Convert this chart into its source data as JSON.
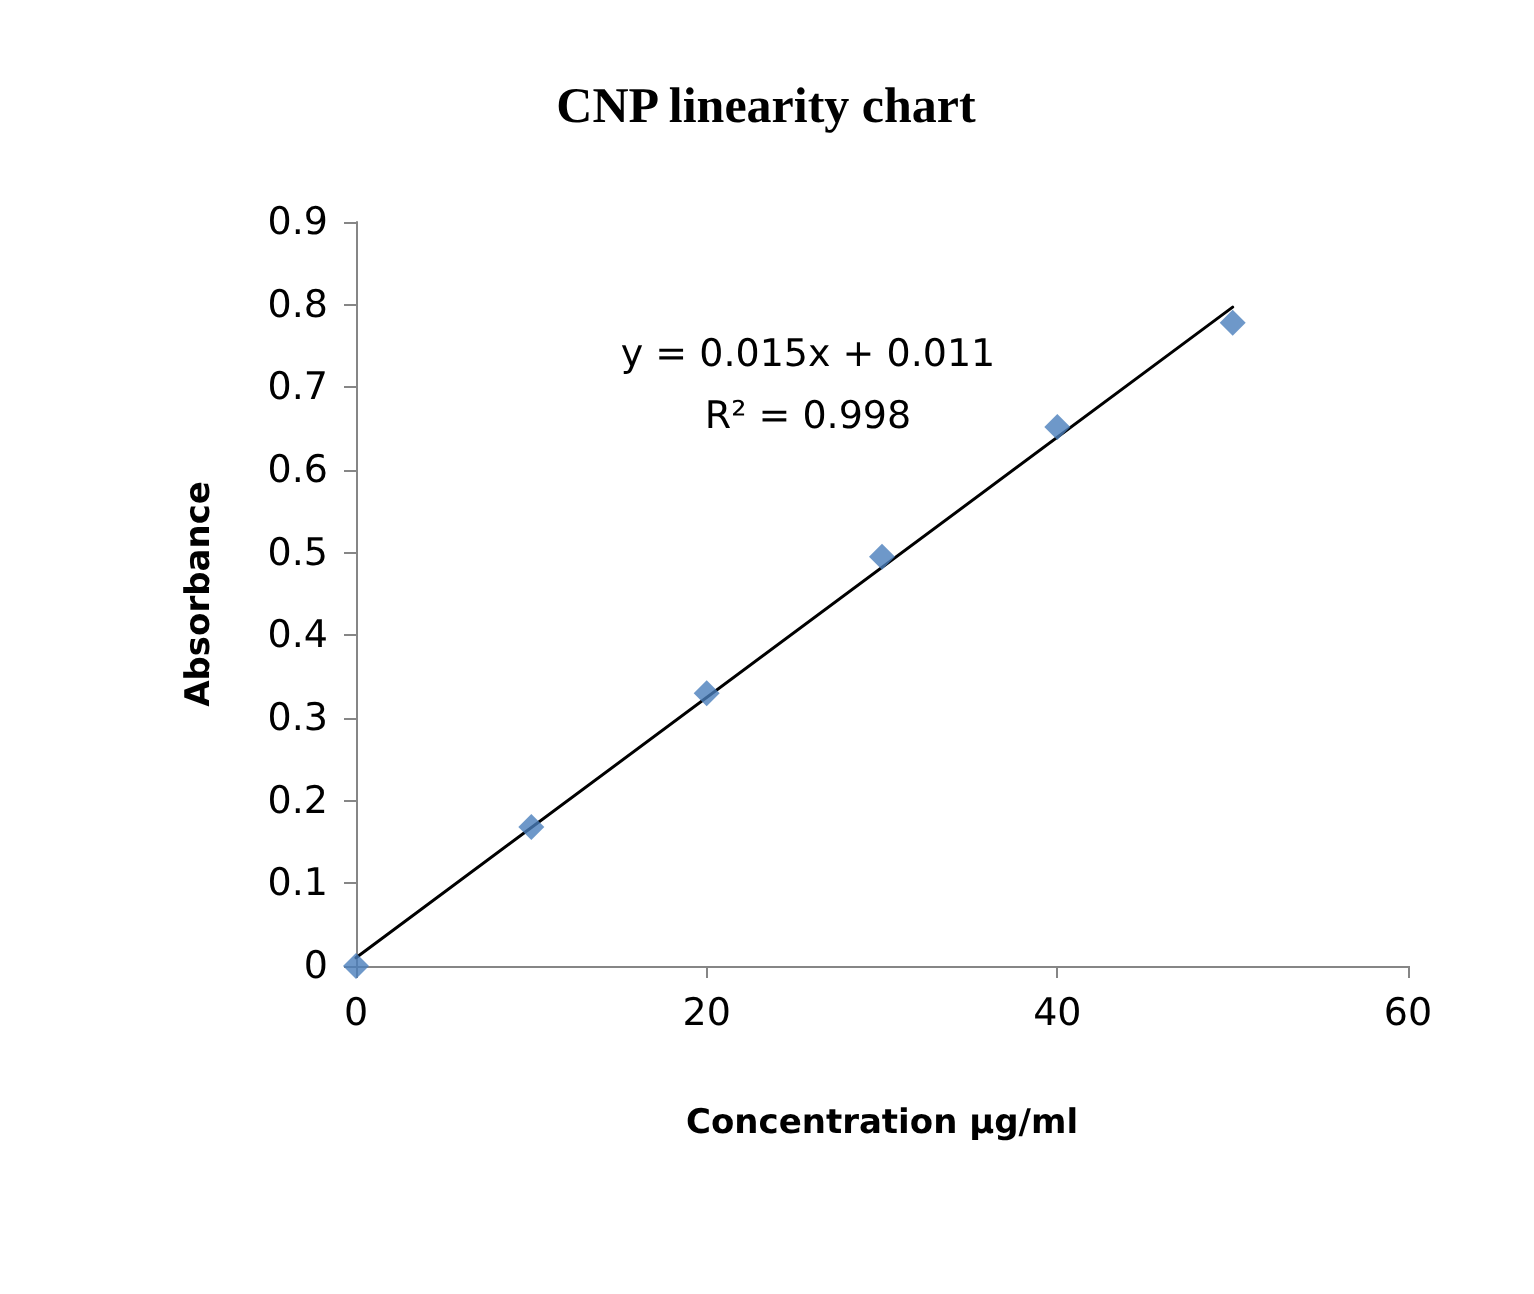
{
  "chart_data": {
    "type": "scatter",
    "title": "CNP linearity chart",
    "xlabel": "Concentration µg/ml",
    "ylabel": "Absorbance",
    "x": [
      0,
      10,
      20,
      30,
      40,
      50
    ],
    "series": [
      {
        "color": "#4a7ebb",
        "marker": "diamond",
        "values": [
          0,
          0.168,
          0.33,
          0.495,
          0.652,
          0.778
        ]
      },
      {
        "type": "line",
        "color": "#000000",
        "marker": "none",
        "x": [
          0,
          50
        ],
        "values": [
          0.01,
          0.797
        ]
      }
    ],
    "annotations": [
      "y = 0.015x + 0.011",
      "R² = 0.998"
    ],
    "xlim": [
      0,
      60
    ],
    "xticks": [
      0,
      20,
      40,
      60
    ],
    "ylim": [
      0,
      0.9
    ],
    "yticks": [
      0,
      0.1,
      0.2,
      0.3,
      0.4,
      0.5,
      0.6,
      0.7,
      0.8,
      0.9
    ],
    "grid": false
  }
}
